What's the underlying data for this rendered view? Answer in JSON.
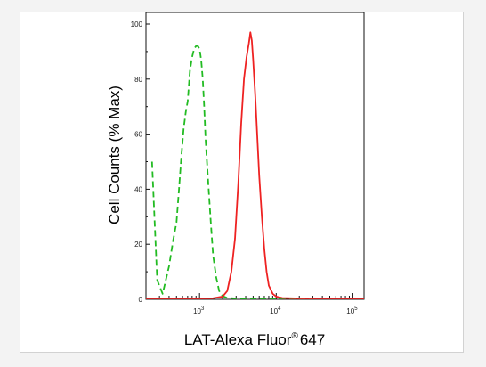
{
  "chart_data": {
    "type": "line",
    "xlabel": "LAT-Alexa Fluor",
    "xlabel_sup": "®",
    "xlabel_suffix": "647",
    "ylabel": "Cell Counts (% Max)",
    "x_scale": "log",
    "xlim": [
      200,
      140000
    ],
    "ylim": [
      0,
      103
    ],
    "y_ticks": [
      0,
      20,
      40,
      60,
      80,
      100
    ],
    "x_ticks": [
      {
        "value": 1000,
        "base": "10",
        "exp": "3"
      },
      {
        "value": 10000,
        "base": "10",
        "exp": "4"
      },
      {
        "value": 100000,
        "base": "10",
        "exp": "5"
      }
    ],
    "grid": false,
    "legend": "none",
    "series": [
      {
        "color": "#22bb22",
        "style": "dashed",
        "x": [
          240,
          280,
          330,
          400,
          450,
          500,
          540,
          580,
          620,
          660,
          700,
          750,
          800,
          850,
          900,
          950,
          1000,
          1050,
          1100,
          1150,
          1200,
          1300,
          1400,
          1500,
          1650,
          1800,
          2000,
          2300,
          3000,
          5000,
          10000,
          30000
        ],
        "values": [
          50,
          7,
          2,
          12,
          21,
          28,
          40,
          52,
          62,
          68,
          72,
          83,
          88,
          91,
          92,
          92,
          91,
          87,
          80,
          70,
          58,
          42,
          28,
          16,
          8,
          3,
          1.2,
          0.5,
          0.2,
          0.1,
          0.1,
          0.1
        ]
      },
      {
        "color": "#ee2222",
        "style": "solid",
        "x": [
          200,
          1000,
          1500,
          2000,
          2300,
          2600,
          2900,
          3200,
          3500,
          3800,
          4100,
          4400,
          4600,
          4800,
          5000,
          5300,
          5600,
          6000,
          6500,
          7000,
          7500,
          8000,
          9000,
          10000,
          12000,
          20000,
          140000
        ],
        "values": [
          0.3,
          0.3,
          0.4,
          1,
          3,
          10,
          22,
          42,
          64,
          80,
          88,
          93,
          97,
          94,
          87,
          75,
          62,
          45,
          30,
          18,
          10,
          5,
          2,
          1,
          0.5,
          0.3,
          0.3
        ]
      }
    ]
  }
}
